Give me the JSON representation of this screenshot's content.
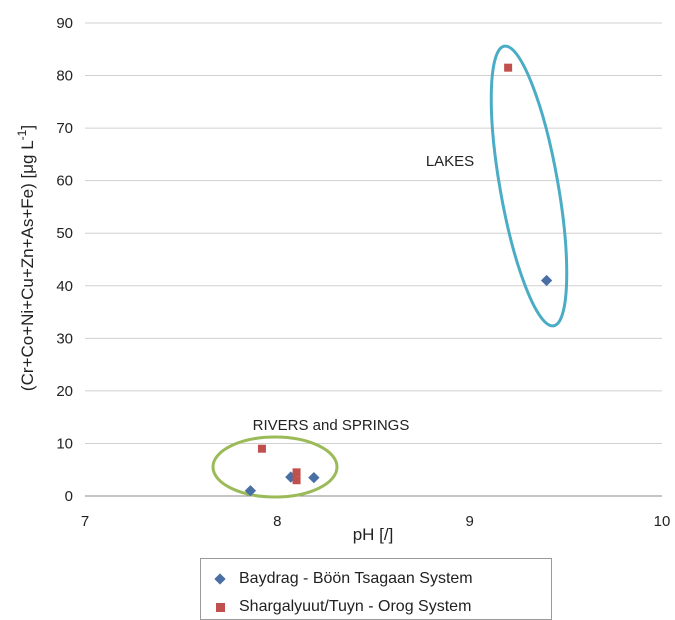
{
  "chart_data": {
    "type": "scatter",
    "title": "",
    "xlabel": "pH [/]",
    "ylabel_main": "(Cr+Co+Ni+Cu+Zn+As+Fe) [μg L",
    "ylabel_sup": "-1",
    "ylabel_end": "]",
    "xlim": [
      7,
      10
    ],
    "ylim": [
      0,
      90
    ],
    "x_ticks": [
      "7",
      "8",
      "9",
      "10"
    ],
    "y_ticks": [
      "0",
      "10",
      "20",
      "30",
      "40",
      "50",
      "60",
      "70",
      "80",
      "90"
    ],
    "grid": "horizontal",
    "legend_position": "bottom",
    "series": [
      {
        "name": "Baydrag - Böön Tsagaan System",
        "marker": "diamond",
        "color": "#4a6fa5",
        "points": [
          {
            "x": 7.86,
            "y": 1
          },
          {
            "x": 8.07,
            "y": 3.6
          },
          {
            "x": 8.19,
            "y": 3.5
          },
          {
            "x": 9.4,
            "y": 41
          }
        ]
      },
      {
        "name": "Shargalyuut/Tuyn - Orog System",
        "marker": "square",
        "color": "#c0504d",
        "points": [
          {
            "x": 7.92,
            "y": 9
          },
          {
            "x": 8.1,
            "y": 4.5
          },
          {
            "x": 8.1,
            "y": 3
          },
          {
            "x": 9.2,
            "y": 81.5
          }
        ]
      }
    ],
    "annotations": [
      {
        "text": "LAKES",
        "x": 8.95,
        "y": 63
      },
      {
        "text": "RIVERS and SPRINGS",
        "x": 8.15,
        "y": 13
      }
    ],
    "groupings": [
      {
        "label": "LAKES",
        "color": "#4bacc6"
      },
      {
        "label": "RIVERS and SPRINGS",
        "color": "#9bbb59"
      }
    ]
  }
}
